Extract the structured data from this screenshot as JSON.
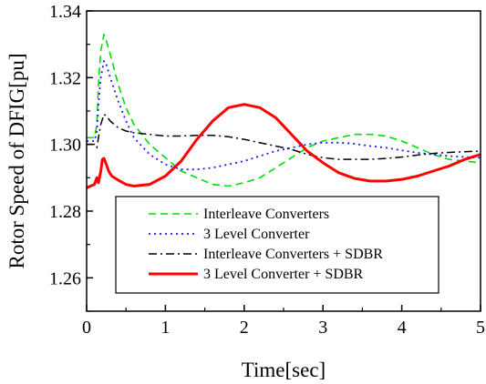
{
  "chart_data": {
    "type": "line",
    "title": "",
    "xlabel": "Time[sec]",
    "ylabel": "Rotor Speed of DFIG[pu]",
    "xlim": [
      0,
      5
    ],
    "ylim": [
      1.25,
      1.34
    ],
    "x_ticks": [
      "0",
      "1",
      "2",
      "3",
      "4",
      "5"
    ],
    "y_ticks": [
      "1.26",
      "1.28",
      "1.30",
      "1.32",
      "1.34"
    ],
    "grid": false,
    "legend_position": "center",
    "series": [
      {
        "name": "Interleave Converters",
        "color": "#00dd00",
        "dash": "dash",
        "x": [
          0,
          0.05,
          0.1,
          0.13,
          0.15,
          0.18,
          0.22,
          0.25,
          0.3,
          0.4,
          0.5,
          0.6,
          0.8,
          1.0,
          1.2,
          1.4,
          1.6,
          1.8,
          2.0,
          2.2,
          2.4,
          2.6,
          2.8,
          3.0,
          3.2,
          3.4,
          3.6,
          3.8,
          4.0,
          4.2,
          4.4,
          4.6,
          4.8,
          5.0
        ],
        "y": [
          1.302,
          1.302,
          1.302,
          1.306,
          1.318,
          1.328,
          1.333,
          1.331,
          1.327,
          1.318,
          1.311,
          1.306,
          1.3,
          1.296,
          1.292,
          1.29,
          1.288,
          1.2875,
          1.2885,
          1.29,
          1.293,
          1.296,
          1.299,
          1.301,
          1.302,
          1.303,
          1.303,
          1.3025,
          1.301,
          1.299,
          1.297,
          1.2955,
          1.295,
          1.2945
        ]
      },
      {
        "name": "3 Level Converter",
        "color": "#1a1aff",
        "dash": "dot",
        "x": [
          0,
          0.05,
          0.1,
          0.13,
          0.15,
          0.18,
          0.22,
          0.25,
          0.3,
          0.4,
          0.5,
          0.6,
          0.8,
          1.0,
          1.2,
          1.4,
          1.6,
          1.8,
          2.0,
          2.2,
          2.4,
          2.6,
          2.8,
          3.0,
          3.2,
          3.4,
          3.6,
          3.8,
          4.0,
          4.2,
          4.4,
          4.6,
          4.8,
          5.0
        ],
        "y": [
          1.301,
          1.301,
          1.301,
          1.304,
          1.312,
          1.32,
          1.325,
          1.324,
          1.32,
          1.313,
          1.307,
          1.302,
          1.297,
          1.294,
          1.2925,
          1.2925,
          1.293,
          1.294,
          1.295,
          1.2965,
          1.298,
          1.299,
          1.3,
          1.3005,
          1.3005,
          1.3002,
          1.2995,
          1.299,
          1.2982,
          1.2975,
          1.297,
          1.2965,
          1.2962,
          1.296
        ]
      },
      {
        "name": "Interleave Converters + SDBR",
        "color": "#000000",
        "dash": "dashdot",
        "x": [
          0,
          0.05,
          0.1,
          0.13,
          0.15,
          0.18,
          0.22,
          0.25,
          0.3,
          0.4,
          0.5,
          0.6,
          0.8,
          1.0,
          1.2,
          1.4,
          1.6,
          1.8,
          2.0,
          2.2,
          2.4,
          2.6,
          2.8,
          3.0,
          3.2,
          3.4,
          3.6,
          3.8,
          4.0,
          4.2,
          4.4,
          4.6,
          4.8,
          5.0
        ],
        "y": [
          1.3,
          1.3,
          1.3,
          1.299,
          1.302,
          1.306,
          1.309,
          1.3085,
          1.307,
          1.305,
          1.304,
          1.3035,
          1.303,
          1.3025,
          1.3025,
          1.3027,
          1.3027,
          1.3023,
          1.3015,
          1.3005,
          1.2995,
          1.2985,
          1.297,
          1.296,
          1.2955,
          1.2955,
          1.2955,
          1.2958,
          1.2962,
          1.2968,
          1.2973,
          1.2976,
          1.2978,
          1.298
        ]
      },
      {
        "name": "3 Level Converter + SDBR",
        "color": "#ff0000",
        "dash": "solid",
        "x": [
          0,
          0.05,
          0.1,
          0.13,
          0.15,
          0.18,
          0.2,
          0.22,
          0.25,
          0.28,
          0.32,
          0.4,
          0.5,
          0.6,
          0.8,
          1.0,
          1.2,
          1.4,
          1.6,
          1.8,
          2.0,
          2.2,
          2.4,
          2.6,
          2.8,
          3.0,
          3.2,
          3.4,
          3.6,
          3.8,
          4.0,
          4.2,
          4.4,
          4.6,
          4.8,
          5.0
        ],
        "y": [
          1.287,
          1.2875,
          1.288,
          1.29,
          1.2885,
          1.292,
          1.2955,
          1.2958,
          1.294,
          1.292,
          1.2905,
          1.2893,
          1.288,
          1.2875,
          1.288,
          1.2905,
          1.295,
          1.3015,
          1.307,
          1.311,
          1.312,
          1.311,
          1.308,
          1.303,
          1.298,
          1.2945,
          1.2915,
          1.2898,
          1.289,
          1.289,
          1.2895,
          1.2905,
          1.292,
          1.2935,
          1.2955,
          1.297
        ]
      }
    ]
  }
}
